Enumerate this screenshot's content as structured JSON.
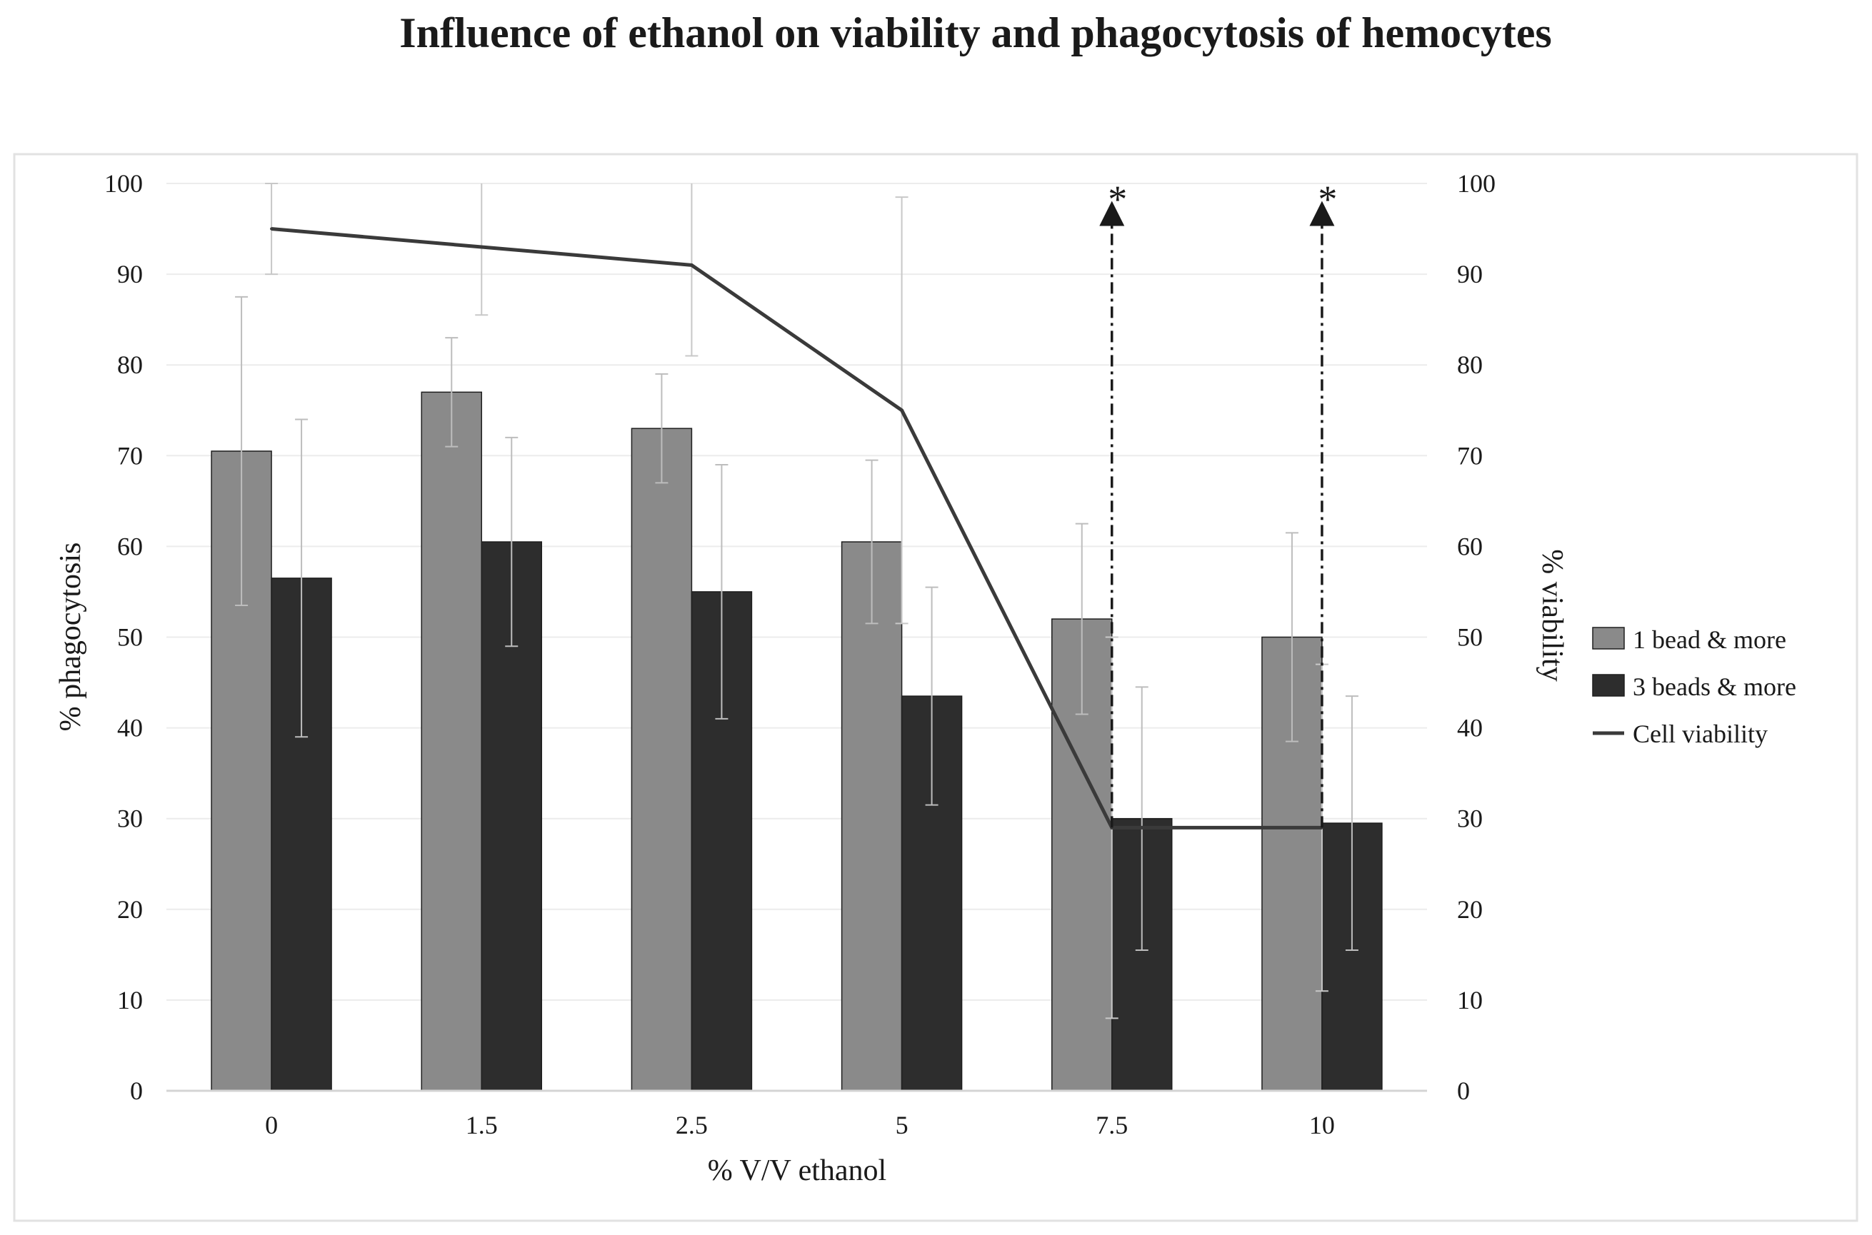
{
  "chart_data": {
    "type": "bar",
    "title": "Influence of ethanol on viability and phagocytosis of hemocytes",
    "xlabel": "% V/V ethanol",
    "ylabel": "% phagocytosis",
    "y2label": "% viability",
    "categories": [
      "0",
      "1.5",
      "2.5",
      "5",
      "7.5",
      "10"
    ],
    "ylim": [
      0,
      100
    ],
    "y2lim": [
      0,
      100
    ],
    "yticks": [
      "0",
      "10",
      "20",
      "30",
      "40",
      "50",
      "60",
      "70",
      "80",
      "90",
      "100"
    ],
    "y2ticks": [
      "0",
      "10",
      "20",
      "30",
      "40",
      "50",
      "60",
      "70",
      "80",
      "90",
      "100"
    ],
    "legend_position": "right",
    "series": [
      {
        "name": "1 bead & more",
        "kind": "bar",
        "color": "#8a8a8a",
        "values": [
          70.5,
          77,
          73,
          60.5,
          52,
          50
        ],
        "error": [
          17,
          6,
          6,
          9,
          10.5,
          11.5
        ]
      },
      {
        "name": "3 beads & more",
        "kind": "bar",
        "color": "#2d2d2d",
        "values": [
          56.5,
          60.5,
          55,
          43.5,
          30,
          29.5
        ],
        "error": [
          17.5,
          11.5,
          14,
          12,
          14.5,
          14
        ]
      },
      {
        "name": "Cell viability",
        "kind": "line",
        "axis": "right",
        "color": "#3a3a3a",
        "values": [
          95,
          93,
          91,
          75,
          29,
          29
        ],
        "error": [
          5,
          7.5,
          10,
          23.5,
          21,
          18
        ]
      }
    ],
    "annotations": [
      {
        "category": "7.5",
        "text": "*"
      },
      {
        "category": "10",
        "text": "*"
      }
    ]
  }
}
